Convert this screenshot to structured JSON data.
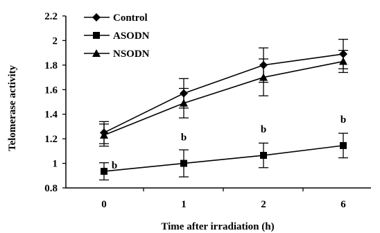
{
  "chart_data": {
    "type": "line",
    "categories": [
      "0",
      "1",
      "2",
      "6"
    ],
    "xlabel": "Time after irradiation (h)",
    "ylabel": "Telomerase activity",
    "ylim": [
      0.8,
      2.2
    ],
    "yticks": [
      0.8,
      1,
      1.2,
      1.4,
      1.6,
      1.8,
      2,
      2.2
    ],
    "ytick_labels": [
      "0.8",
      "1",
      "1.2",
      "1.4",
      "1.6",
      "1.8",
      "2",
      "2.2"
    ],
    "grid": false,
    "legend_position": "top-left",
    "series": [
      {
        "name": "Control",
        "marker": "diamond",
        "values": [
          1.25,
          1.57,
          1.8,
          1.89
        ],
        "errors": [
          0.09,
          0.12,
          0.14,
          0.12
        ]
      },
      {
        "name": "ASODN",
        "marker": "square",
        "values": [
          0.935,
          1.0,
          1.065,
          1.145
        ],
        "errors": [
          0.07,
          0.11,
          0.1,
          0.1
        ]
      },
      {
        "name": "NSODN",
        "marker": "triangle",
        "values": [
          1.23,
          1.49,
          1.7,
          1.83
        ],
        "errors": [
          0.09,
          0.12,
          0.15,
          0.09
        ]
      }
    ],
    "annotations": [
      {
        "series": "ASODN",
        "index": 0,
        "text": "b"
      },
      {
        "series": "ASODN",
        "index": 1,
        "text": "b"
      },
      {
        "series": "ASODN",
        "index": 2,
        "text": "b"
      },
      {
        "series": "ASODN",
        "index": 3,
        "text": "b"
      }
    ]
  }
}
